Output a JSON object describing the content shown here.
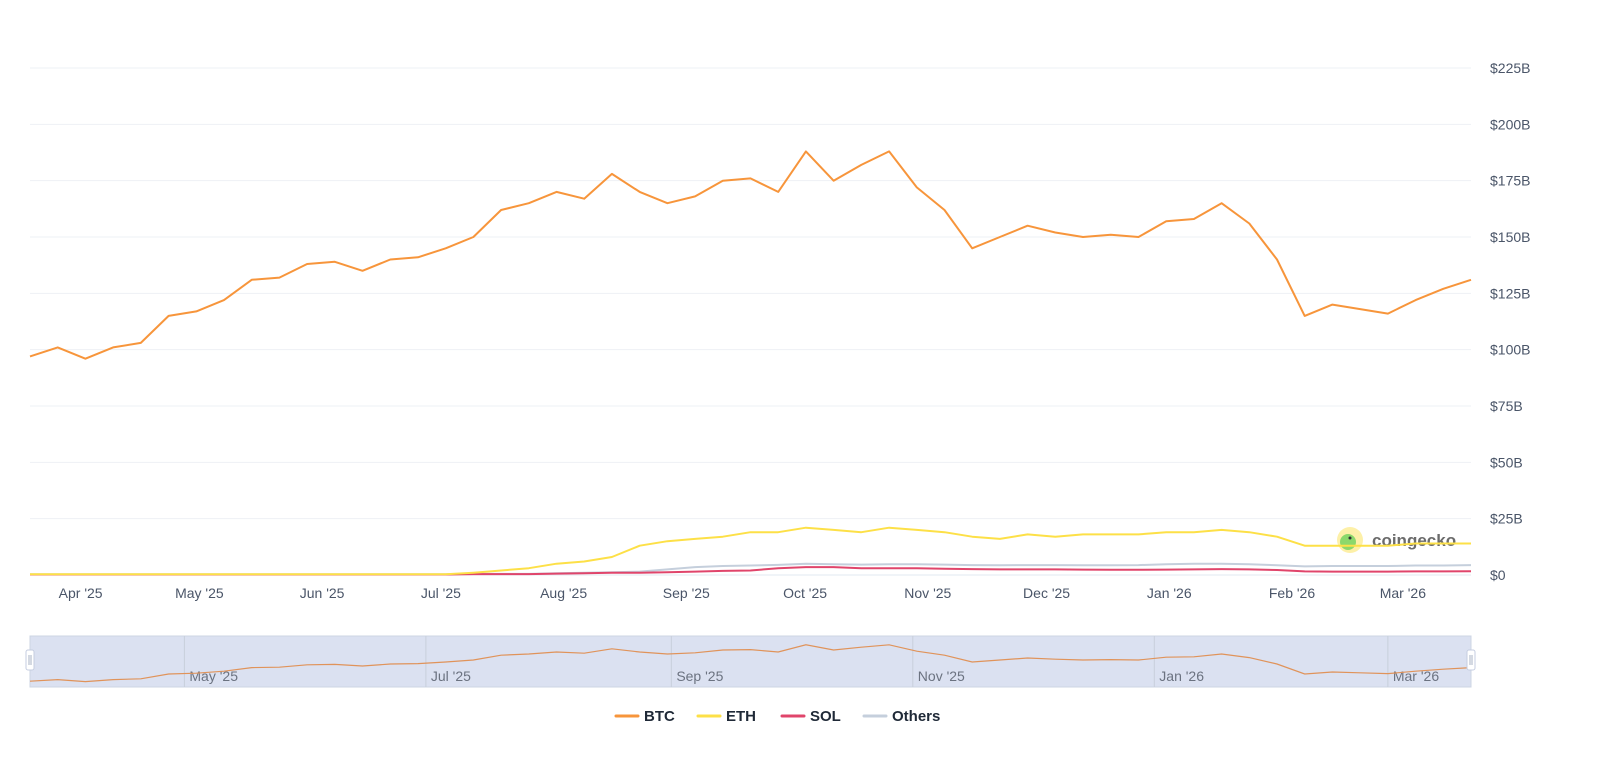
{
  "chart_data": {
    "type": "line",
    "title": "",
    "xlabel": "",
    "ylabel": "",
    "y_unit": "USD billions",
    "ylim": [
      0,
      225
    ],
    "y_ticks": [
      "$0",
      "$25B",
      "$50B",
      "$75B",
      "$100B",
      "$125B",
      "$150B",
      "$175B",
      "$200B",
      "$225B"
    ],
    "y_tick_values": [
      0,
      25,
      50,
      75,
      100,
      125,
      150,
      175,
      200,
      225
    ],
    "x_ticks": [
      {
        "label": "Apr '25",
        "date": "2025-04-01"
      },
      {
        "label": "May '25",
        "date": "2025-05-01"
      },
      {
        "label": "Jun '25",
        "date": "2025-06-01"
      },
      {
        "label": "Jul '25",
        "date": "2025-07-01"
      },
      {
        "label": "Aug '25",
        "date": "2025-08-01"
      },
      {
        "label": "Sep '25",
        "date": "2025-09-01"
      },
      {
        "label": "Oct '25",
        "date": "2025-10-01"
      },
      {
        "label": "Nov '25",
        "date": "2025-11-01"
      },
      {
        "label": "Dec '25",
        "date": "2025-12-01"
      },
      {
        "label": "Jan '26",
        "date": "2026-01-01"
      },
      {
        "label": "Feb '26",
        "date": "2026-02-01"
      },
      {
        "label": "Mar '26",
        "date": "2026-03-01"
      }
    ],
    "xlim": [
      "2025-03-23",
      "2026-03-22"
    ],
    "grid": true,
    "legend_position": "bottom",
    "x": [
      "2025-03-23",
      "2025-03-30",
      "2025-04-06",
      "2025-04-13",
      "2025-04-20",
      "2025-04-27",
      "2025-05-04",
      "2025-05-11",
      "2025-05-18",
      "2025-05-25",
      "2025-06-01",
      "2025-06-08",
      "2025-06-15",
      "2025-06-22",
      "2025-06-29",
      "2025-07-06",
      "2025-07-13",
      "2025-07-20",
      "2025-07-27",
      "2025-08-03",
      "2025-08-10",
      "2025-08-17",
      "2025-08-24",
      "2025-08-31",
      "2025-09-07",
      "2025-09-14",
      "2025-09-21",
      "2025-09-28",
      "2025-10-05",
      "2025-10-12",
      "2025-10-19",
      "2025-10-26",
      "2025-11-02",
      "2025-11-09",
      "2025-11-16",
      "2025-11-23",
      "2025-11-30",
      "2025-12-07",
      "2025-12-14",
      "2025-12-21",
      "2025-12-28",
      "2026-01-04",
      "2026-01-11",
      "2026-01-18",
      "2026-01-25",
      "2026-02-01",
      "2026-02-08",
      "2026-02-15",
      "2026-02-22",
      "2026-03-01",
      "2026-03-08",
      "2026-03-15",
      "2026-03-22"
    ],
    "series": [
      {
        "name": "BTC",
        "color": "#f7953b",
        "values": [
          97,
          101,
          96,
          101,
          103,
          115,
          117,
          122,
          131,
          132,
          138,
          139,
          135,
          140,
          141,
          145,
          150,
          162,
          165,
          170,
          167,
          178,
          170,
          165,
          168,
          175,
          176,
          170,
          188,
          175,
          182,
          188,
          172,
          162,
          145,
          150,
          155,
          152,
          150,
          151,
          150,
          157,
          158,
          165,
          156,
          140,
          115,
          120,
          118,
          116,
          122,
          127,
          131
        ]
      },
      {
        "name": "ETH",
        "color": "#fde047",
        "values": [
          0.3,
          0.3,
          0.3,
          0.3,
          0.3,
          0.3,
          0.3,
          0.3,
          0.3,
          0.3,
          0.3,
          0.3,
          0.3,
          0.3,
          0.3,
          0.3,
          1,
          2,
          3,
          5,
          6,
          8,
          13,
          15,
          16,
          17,
          19,
          19,
          21,
          20,
          19,
          21,
          20,
          19,
          17,
          16,
          18,
          17,
          18,
          18,
          18,
          19,
          19,
          20,
          19,
          17,
          13,
          13,
          13,
          13,
          14,
          14,
          14
        ]
      },
      {
        "name": "SOL",
        "color": "#e0456b",
        "values": [
          0.2,
          0.2,
          0.2,
          0.2,
          0.2,
          0.2,
          0.2,
          0.2,
          0.2,
          0.2,
          0.2,
          0.2,
          0.2,
          0.2,
          0.2,
          0.2,
          0.4,
          0.4,
          0.4,
          0.6,
          0.8,
          1,
          1,
          1.2,
          1.5,
          1.8,
          2,
          3,
          3.5,
          3.5,
          3,
          3,
          3,
          2.8,
          2.6,
          2.5,
          2.5,
          2.5,
          2.4,
          2.3,
          2.3,
          2.4,
          2.5,
          2.6,
          2.5,
          2.2,
          1.6,
          1.5,
          1.5,
          1.5,
          1.6,
          1.6,
          1.7
        ]
      },
      {
        "name": "Others",
        "color": "#c5cfdc",
        "values": [
          0.3,
          0.3,
          0.3,
          0.3,
          0.3,
          0.3,
          0.3,
          0.3,
          0.3,
          0.3,
          0.3,
          0.3,
          0.3,
          0.3,
          0.3,
          0.3,
          0.5,
          0.5,
          0.5,
          0.8,
          1,
          1.2,
          1.5,
          2.5,
          3.5,
          4,
          4.2,
          4.5,
          5,
          4.8,
          4.6,
          4.8,
          4.8,
          4.6,
          4.4,
          4.3,
          4.4,
          4.4,
          4.3,
          4.3,
          4.4,
          4.8,
          5,
          5,
          4.8,
          4.3,
          3.8,
          4,
          4,
          4,
          4.2,
          4.2,
          4.4
        ]
      }
    ],
    "navigator": {
      "ticks": [
        "May '25",
        "Jul '25",
        "Sep '25",
        "Nov '25",
        "Jan '26",
        "Mar '26"
      ],
      "tick_dates": [
        "2025-05-01",
        "2025-07-01",
        "2025-09-01",
        "2025-11-01",
        "2026-01-01",
        "2026-03-01"
      ],
      "selected_range": [
        "2025-03-23",
        "2026-03-22"
      ]
    },
    "watermark": "coingecko"
  }
}
